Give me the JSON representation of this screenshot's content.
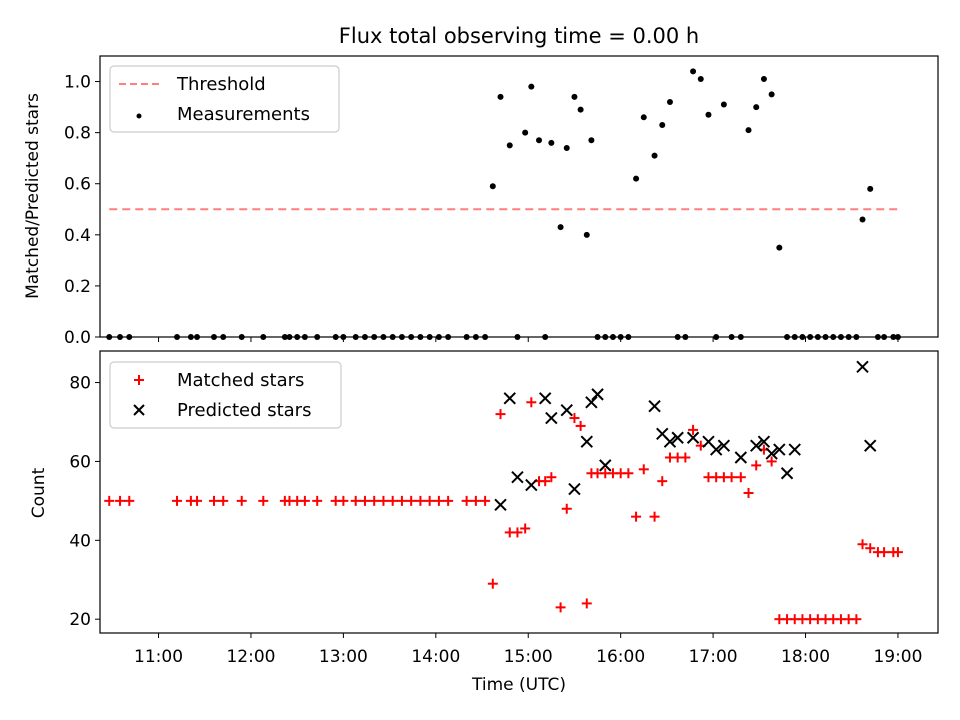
{
  "chart_data": [
    {
      "type": "scatter",
      "title": "Flux total observing time = 0.00 h",
      "xlabel": "",
      "ylabel": "Matched/Predicted stars",
      "xlim": [
        "10:22",
        "19:26"
      ],
      "ylim": [
        0,
        1.1
      ],
      "yticks": [
        0.0,
        0.2,
        0.4,
        0.6,
        0.8,
        1.0
      ],
      "ytick_labels": [
        "0.0",
        "0.2",
        "0.4",
        "0.6",
        "0.8",
        "1.0"
      ],
      "legend_position": "upper left",
      "series": [
        {
          "name": "Threshold",
          "kind": "dashed-line",
          "color": "#ff7f7f",
          "x": [
            "10:28",
            "19:00"
          ],
          "y": [
            0.5,
            0.5
          ]
        },
        {
          "name": "Measurements",
          "kind": "scatter-dot",
          "color": "#000000",
          "x": [
            "10:28",
            "10:35",
            "10:41",
            "11:12",
            "11:21",
            "11:25",
            "11:36",
            "11:42",
            "11:54",
            "12:08",
            "12:22",
            "12:25",
            "12:30",
            "12:35",
            "12:43",
            "12:55",
            "13:00",
            "13:08",
            "13:14",
            "13:20",
            "13:26",
            "13:32",
            "13:38",
            "13:44",
            "13:50",
            "13:56",
            "14:02",
            "14:08",
            "14:20",
            "14:26",
            "14:32",
            "14:37",
            "14:42",
            "14:48",
            "14:53",
            "14:58",
            "15:02",
            "15:07",
            "15:11",
            "15:15",
            "15:21",
            "15:25",
            "15:30",
            "15:34",
            "15:38",
            "15:41",
            "15:45",
            "15:50",
            "15:55",
            "16:00",
            "16:05",
            "16:10",
            "16:15",
            "16:22",
            "16:27",
            "16:32",
            "16:37",
            "16:42",
            "16:47",
            "16:52",
            "16:57",
            "17:02",
            "17:07",
            "17:12",
            "17:18",
            "17:23",
            "17:28",
            "17:33",
            "17:38",
            "17:43",
            "17:48",
            "17:53",
            "17:58",
            "18:03",
            "18:08",
            "18:13",
            "18:18",
            "18:23",
            "18:28",
            "18:33",
            "18:37",
            "18:42",
            "18:47",
            "18:51",
            "18:57",
            "19:00"
          ],
          "y": [
            0,
            0,
            0,
            0,
            0,
            0,
            0,
            0,
            0,
            0,
            0,
            0,
            0,
            0,
            0,
            0,
            0,
            0,
            0,
            0,
            0,
            0,
            0,
            0,
            0,
            0,
            0,
            0,
            0,
            0,
            0,
            0.59,
            0.94,
            0.75,
            0,
            0.8,
            0.98,
            0.77,
            0,
            0.76,
            0.43,
            0.74,
            0.94,
            0.89,
            0.4,
            0.77,
            0,
            0,
            0,
            0,
            0,
            0.62,
            0.86,
            0.71,
            0.83,
            0.92,
            0,
            0,
            1.04,
            1.01,
            0.87,
            0,
            0.91,
            0,
            0,
            0.81,
            0.9,
            1.01,
            0.95,
            0.35,
            0,
            0,
            0,
            0,
            0,
            0,
            0,
            0,
            0,
            0,
            0.46,
            0.58,
            0,
            0,
            0,
            0
          ]
        }
      ]
    },
    {
      "type": "scatter",
      "title": "",
      "xlabel": "Time (UTC)",
      "ylabel": "Count",
      "xlim": [
        "10:22",
        "19:26"
      ],
      "ylim": [
        16.5,
        88
      ],
      "yticks": [
        20,
        40,
        60,
        80
      ],
      "ytick_labels": [
        "20",
        "40",
        "60",
        "80"
      ],
      "xticks": [
        "11:00",
        "12:00",
        "13:00",
        "14:00",
        "15:00",
        "16:00",
        "17:00",
        "18:00",
        "19:00"
      ],
      "xtick_labels": [
        "11:00",
        "12:00",
        "13:00",
        "14:00",
        "15:00",
        "16:00",
        "17:00",
        "18:00",
        "19:00"
      ],
      "legend_position": "upper left",
      "series": [
        {
          "name": "Matched stars",
          "kind": "plus",
          "color": "#ff0000",
          "x": [
            "10:28",
            "10:35",
            "10:41",
            "11:12",
            "11:21",
            "11:25",
            "11:36",
            "11:42",
            "11:54",
            "12:08",
            "12:22",
            "12:25",
            "12:30",
            "12:35",
            "12:43",
            "12:55",
            "13:00",
            "13:08",
            "13:14",
            "13:20",
            "13:26",
            "13:32",
            "13:38",
            "13:44",
            "13:50",
            "13:56",
            "14:02",
            "14:08",
            "14:20",
            "14:26",
            "14:32",
            "14:37",
            "14:42",
            "14:48",
            "14:53",
            "14:58",
            "15:02",
            "15:07",
            "15:11",
            "15:15",
            "15:21",
            "15:25",
            "15:30",
            "15:34",
            "15:38",
            "15:41",
            "15:45",
            "15:50",
            "15:55",
            "16:00",
            "16:05",
            "16:10",
            "16:15",
            "16:22",
            "16:27",
            "16:32",
            "16:37",
            "16:42",
            "16:47",
            "16:52",
            "16:57",
            "17:02",
            "17:07",
            "17:12",
            "17:18",
            "17:23",
            "17:28",
            "17:33",
            "17:38",
            "17:43",
            "17:48",
            "17:53",
            "17:58",
            "18:03",
            "18:08",
            "18:13",
            "18:18",
            "18:23",
            "18:28",
            "18:33",
            "18:37",
            "18:42",
            "18:47",
            "18:51",
            "18:57",
            "19:00"
          ],
          "y": [
            50,
            50,
            50,
            50,
            50,
            50,
            50,
            50,
            50,
            50,
            50,
            50,
            50,
            50,
            50,
            50,
            50,
            50,
            50,
            50,
            50,
            50,
            50,
            50,
            50,
            50,
            50,
            50,
            50,
            50,
            50,
            29,
            72,
            42,
            42,
            43,
            75,
            55,
            55,
            56,
            23,
            48,
            71,
            69,
            24,
            57,
            57,
            57,
            57,
            57,
            57,
            46,
            58,
            46,
            55,
            61,
            61,
            61,
            68,
            64,
            56,
            56,
            56,
            56,
            56,
            52,
            59,
            63,
            60,
            20,
            20,
            20,
            20,
            20,
            20,
            20,
            20,
            20,
            20,
            20,
            39,
            38,
            37,
            37,
            37,
            37
          ]
        },
        {
          "name": "Predicted stars",
          "kind": "x",
          "color": "#000000",
          "x": [
            "14:42",
            "14:48",
            "14:53",
            "15:02",
            "15:11",
            "15:15",
            "15:25",
            "15:30",
            "15:38",
            "15:41",
            "15:45",
            "15:50",
            "16:22",
            "16:27",
            "16:32",
            "16:37",
            "16:47",
            "16:57",
            "17:02",
            "17:07",
            "17:18",
            "17:28",
            "17:33",
            "17:38",
            "17:43",
            "17:48",
            "17:53",
            "18:37",
            "18:42"
          ],
          "y": [
            49,
            76,
            56,
            54,
            76,
            71,
            73,
            53,
            65,
            75,
            77,
            59,
            74,
            67,
            65,
            66,
            66,
            65,
            63,
            64,
            61,
            64,
            65,
            62,
            63,
            57,
            63,
            84,
            64
          ]
        }
      ]
    }
  ]
}
